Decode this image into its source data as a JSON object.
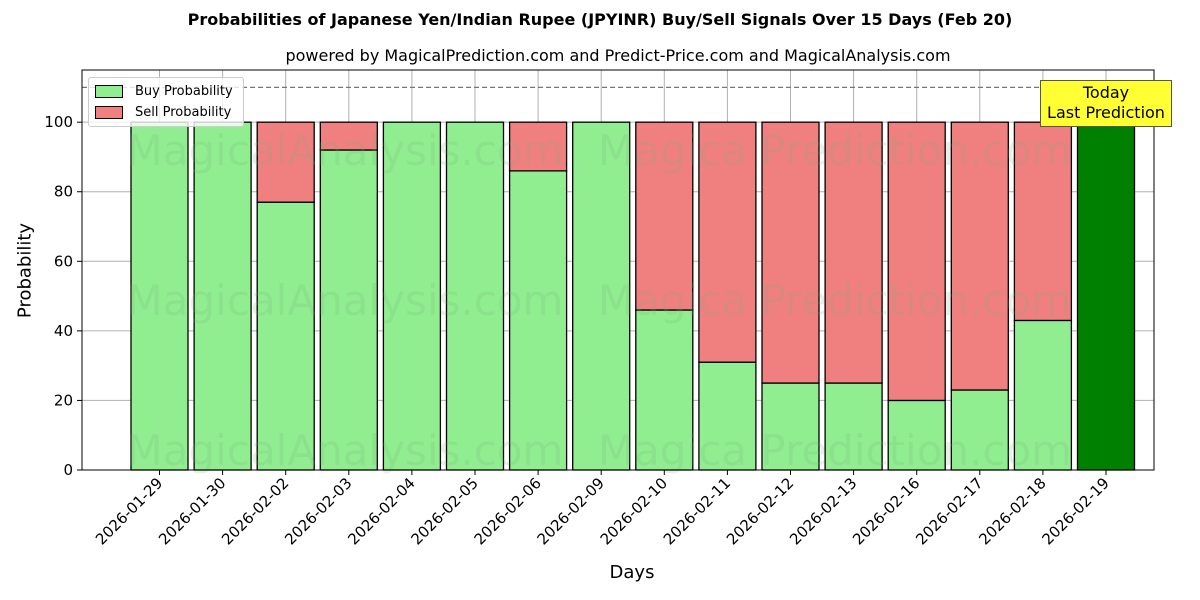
{
  "chart_data": {
    "type": "bar",
    "stacked": true,
    "title": "Probabilities of Japanese Yen/Indian Rupee (JPYINR) Buy/Sell Signals Over 15 Days (Feb 20)",
    "subtitle": "powered by MagicalPrediction.com and Predict-Price.com and MagicalAnalysis.com",
    "xlabel": "Days",
    "ylabel": "Probability",
    "ylim": [
      0,
      115
    ],
    "yticks": [
      0,
      20,
      40,
      60,
      80,
      100
    ],
    "grid": true,
    "reference_line": {
      "y": 110,
      "style": "dashed"
    },
    "categories": [
      "2026-01-29",
      "2026-01-30",
      "2026-02-02",
      "2026-02-03",
      "2026-02-04",
      "2026-02-05",
      "2026-02-06",
      "2026-02-09",
      "2026-02-10",
      "2026-02-11",
      "2026-02-12",
      "2026-02-13",
      "2026-02-16",
      "2026-02-17",
      "2026-02-18",
      "2026-02-19"
    ],
    "series": [
      {
        "name": "Buy Probability",
        "color": "#90ee90",
        "values": [
          100,
          100,
          77,
          92,
          100,
          100,
          86,
          100,
          46,
          31,
          25,
          25,
          20,
          23,
          43,
          100
        ]
      },
      {
        "name": "Sell Probability",
        "color": "#f08080",
        "values": [
          0,
          0,
          23,
          8,
          0,
          0,
          14,
          0,
          54,
          69,
          75,
          75,
          80,
          77,
          57,
          0
        ]
      }
    ],
    "highlight": {
      "index": 15,
      "color": "#008000",
      "label_line1": "Today",
      "label_line2": "Last Prediction",
      "box_color": "#ffff33"
    },
    "legend": {
      "position": "upper left",
      "entries": [
        "Buy Probability",
        "Sell Probability"
      ]
    },
    "watermarks": [
      "MagicalAnalysis.com",
      "MagicalPrediction.com"
    ]
  }
}
